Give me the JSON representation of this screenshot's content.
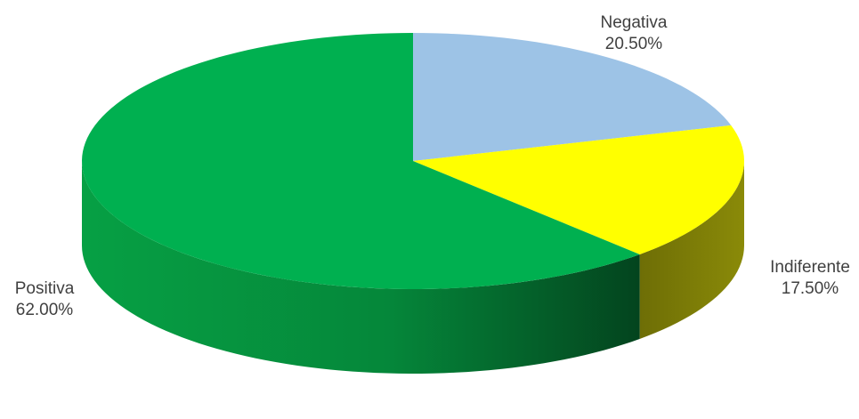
{
  "chart_data": {
    "type": "pie",
    "style": "3d",
    "title": "",
    "slices": [
      {
        "name": "Negativa",
        "value": 20.5,
        "label": "20.50%",
        "color": "#9dc3e6"
      },
      {
        "name": "Indiferente",
        "value": 17.5,
        "label": "17.50%",
        "color": "#ffff00"
      },
      {
        "name": "Positiva",
        "value": 62.0,
        "label": "62.00%",
        "color": "#00b050"
      }
    ],
    "start_angle": "12 o'clock",
    "direction": "clockwise",
    "legend": "none",
    "data_labels": "outside"
  }
}
